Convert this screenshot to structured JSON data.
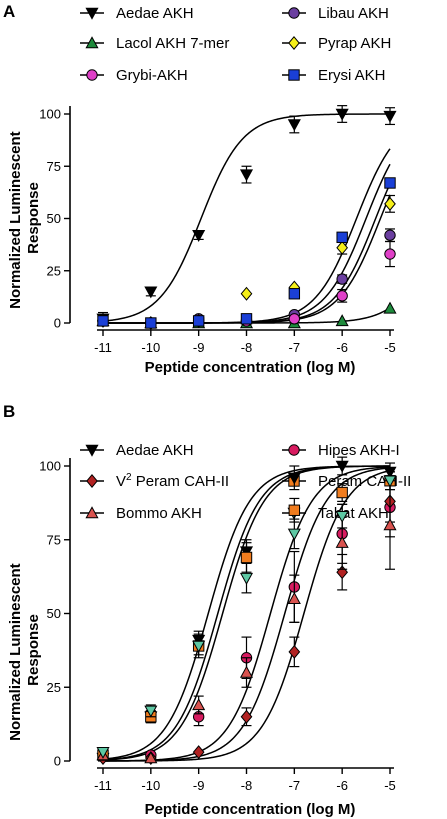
{
  "chart_data": [
    {
      "type": "scatter",
      "panel_label": "A",
      "xlabel": "Peptide concentration (log M)",
      "ylabel": "Normalized Luminescent Response",
      "xlim": [
        -11,
        -5
      ],
      "ylim": [
        0,
        100
      ],
      "x_ticks": [
        "-11",
        "-10",
        "-9",
        "-8",
        "-7",
        "-6",
        "-5"
      ],
      "y_ticks": [
        "0",
        "25",
        "50",
        "75",
        "100"
      ],
      "x": [
        -11,
        -10,
        -9,
        -8,
        -7,
        -6,
        -5
      ],
      "series": [
        {
          "name": "Aedae AKH",
          "marker": "triangle-down",
          "color": "#000000",
          "values": [
            2,
            15,
            42,
            71,
            95,
            100,
            99
          ],
          "err": [
            3,
            2,
            2,
            4,
            4,
            4,
            4
          ],
          "fit": {
            "ec50": -8.95,
            "hill": 1.0,
            "top": 100
          }
        },
        {
          "name": "Libau AKH",
          "marker": "circle",
          "color": "#6b3fa0",
          "values": [
            1,
            0,
            2,
            1,
            4,
            21,
            42
          ],
          "err": [
            0,
            0,
            0,
            0,
            0,
            2,
            3
          ],
          "fit": {
            "ec50": -5.7,
            "hill": 1.0,
            "top": 100
          }
        },
        {
          "name": "Lacol AKH 7-mer",
          "marker": "triangle-up",
          "color": "#1e8a3c",
          "values": [
            1,
            0,
            0,
            0,
            0,
            1,
            7
          ],
          "err": [
            0,
            0,
            0,
            0,
            0,
            0,
            0
          ],
          "fit": {
            "ec50": -3.9,
            "hill": 1.0,
            "top": 100
          }
        },
        {
          "name": "Pyrap AKH",
          "marker": "diamond",
          "color": "#f5ef1a",
          "values": [
            1,
            0,
            1,
            14,
            17,
            36,
            57
          ],
          "err": [
            0,
            0,
            0,
            0,
            0,
            3,
            4
          ],
          "fit": {
            "ec50": -5.2,
            "hill": 1.0,
            "top": 100
          }
        },
        {
          "name": "Grybi-AKH",
          "marker": "circle",
          "color": "#e040c8",
          "values": [
            1,
            0,
            1,
            1,
            2,
            13,
            33
          ],
          "err": [
            0,
            0,
            0,
            0,
            0,
            3,
            6
          ],
          "fit": {
            "ec50": -5.5,
            "hill": 1.0,
            "top": 100
          }
        },
        {
          "name": "Erysi AKH",
          "marker": "square",
          "color": "#1a3fd6",
          "values": [
            1,
            0,
            1,
            2,
            14,
            41,
            67
          ],
          "err": [
            0,
            0,
            0,
            0,
            0,
            0,
            0
          ],
          "fit": {
            "ec50": -5.3,
            "hill": 1.0,
            "top": 100
          }
        }
      ],
      "legend": {
        "placement": "top",
        "columns": 2
      }
    },
    {
      "type": "scatter",
      "panel_label": "B",
      "xlabel": "Peptide concentration (log M)",
      "ylabel": "Normalized Luminescent Response",
      "xlim": [
        -11,
        -5
      ],
      "ylim": [
        0,
        100
      ],
      "x_ticks": [
        "-11",
        "-10",
        "-9",
        "-8",
        "-7",
        "-6",
        "-5"
      ],
      "y_ticks": [
        "0",
        "25",
        "50",
        "75",
        "100"
      ],
      "x": [
        -11,
        -10,
        -9,
        -8,
        -7,
        -6,
        -5
      ],
      "series": [
        {
          "name": "Aedae AKH",
          "marker": "triangle-down",
          "color": "#000000",
          "values": [
            1,
            15,
            41,
            71,
            96,
            100,
            98
          ],
          "err": [
            1,
            2,
            3,
            4,
            4,
            3,
            3
          ],
          "fit": {
            "ec50": -8.8,
            "hill": 1.0,
            "top": 100
          }
        },
        {
          "name": "Hipes AKH-I",
          "marker": "circle",
          "color": "#d81b60",
          "values": [
            2,
            2,
            15,
            35,
            59,
            77,
            86
          ],
          "err": [
            0,
            0,
            3,
            7,
            12,
            10,
            10
          ],
          "fit": {
            "ec50": -7.5,
            "hill": 1.0,
            "top": 100
          }
        },
        {
          "name": "V² Peram CAH-II",
          "marker": "diamond",
          "color": "#b22222",
          "values": [
            1,
            1,
            3,
            15,
            37,
            64,
            88
          ],
          "err": [
            0,
            0,
            0,
            3,
            5,
            6,
            7
          ],
          "fit": {
            "ec50": -6.8,
            "hill": 1.0,
            "top": 100
          }
        },
        {
          "name": "Peram CAH-II",
          "marker": "square",
          "color": "#f07c1e",
          "values": [
            2,
            15,
            39,
            69,
            85,
            91,
            95
          ],
          "err": [
            0,
            2,
            4,
            5,
            4,
            3,
            3
          ],
          "fit": {
            "ec50": -8.6,
            "hill": 1.0,
            "top": 100
          }
        },
        {
          "name": "Bommo AKH",
          "marker": "triangle-up",
          "color": "#d9534f",
          "values": [
            2,
            1,
            19,
            30,
            55,
            74,
            80
          ],
          "err": [
            0,
            0,
            3,
            5,
            8,
            9,
            15
          ],
          "fit": {
            "ec50": -7.2,
            "hill": 1.0,
            "top": 100
          }
        },
        {
          "name": "Tabat AKH",
          "marker": "triangle-down",
          "color": "#5ec8a4",
          "values": [
            3,
            17,
            39,
            62,
            77,
            83,
            95
          ],
          "err": [
            0,
            2,
            3,
            5,
            5,
            4,
            3
          ],
          "fit": {
            "ec50": -8.5,
            "hill": 1.0,
            "top": 100
          }
        }
      ],
      "legend": {
        "placement": "top",
        "columns": 2
      }
    }
  ]
}
